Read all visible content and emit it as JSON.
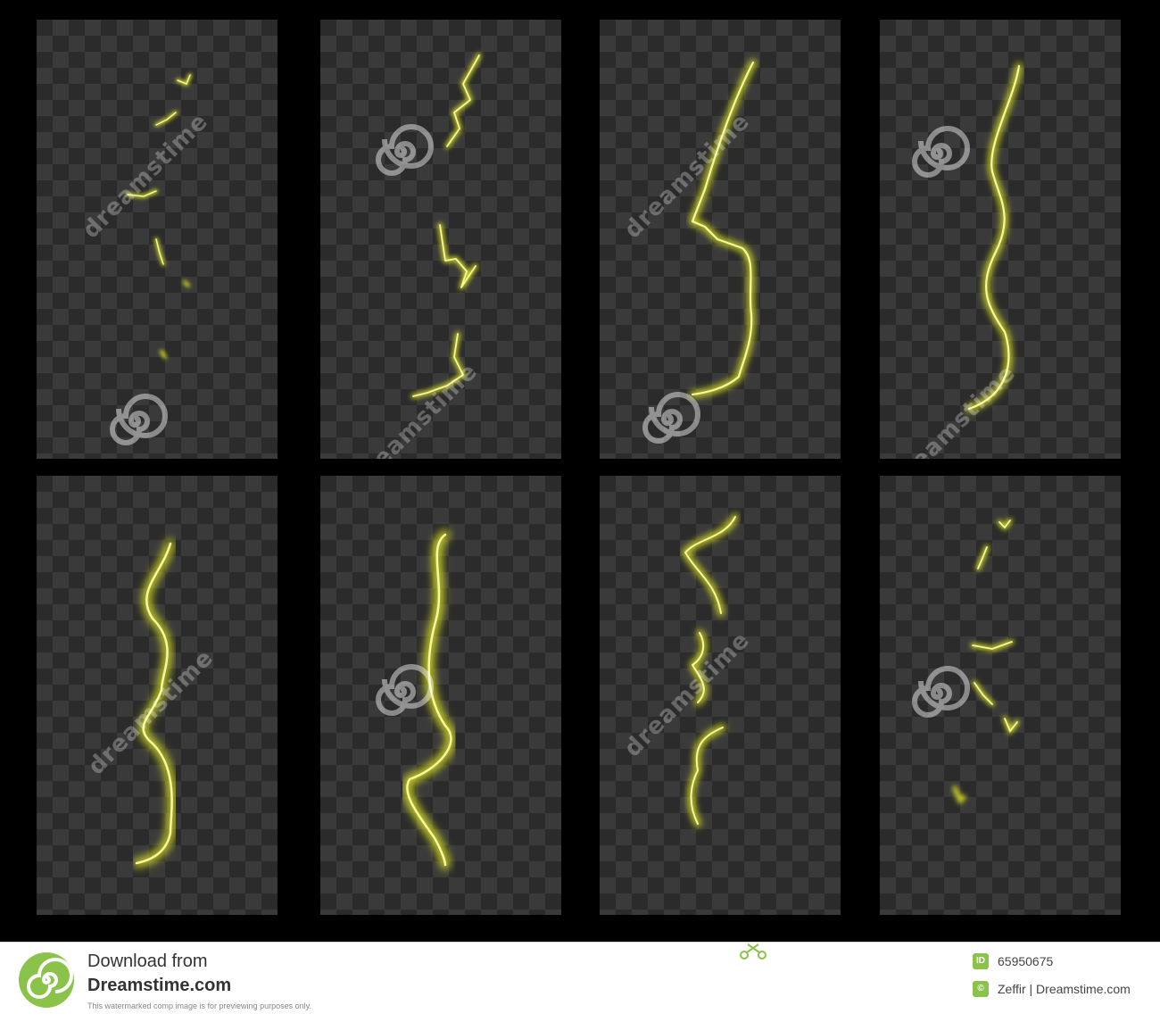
{
  "watermark": {
    "text": "dreamstime"
  },
  "footer": {
    "download_line1": "Download from",
    "download_line2": "Dreamstime.com",
    "note": "This watermarked comp image is for previewing purposes only.",
    "id_badge": "ID",
    "image_id": "65950675",
    "copyright_badge": "©",
    "credit": "Zeffir | Dreamstime.com"
  },
  "colors": {
    "background": "#000000",
    "checker_dark": "#2b2b2b",
    "checker_light": "#3a3a3a",
    "lightning": "#d8e020",
    "lightning_core": "#f6f7a0",
    "footer_accent": "#8bc34a"
  },
  "icons": [
    "dreamstime-spiral-icon",
    "scissors-icon"
  ]
}
